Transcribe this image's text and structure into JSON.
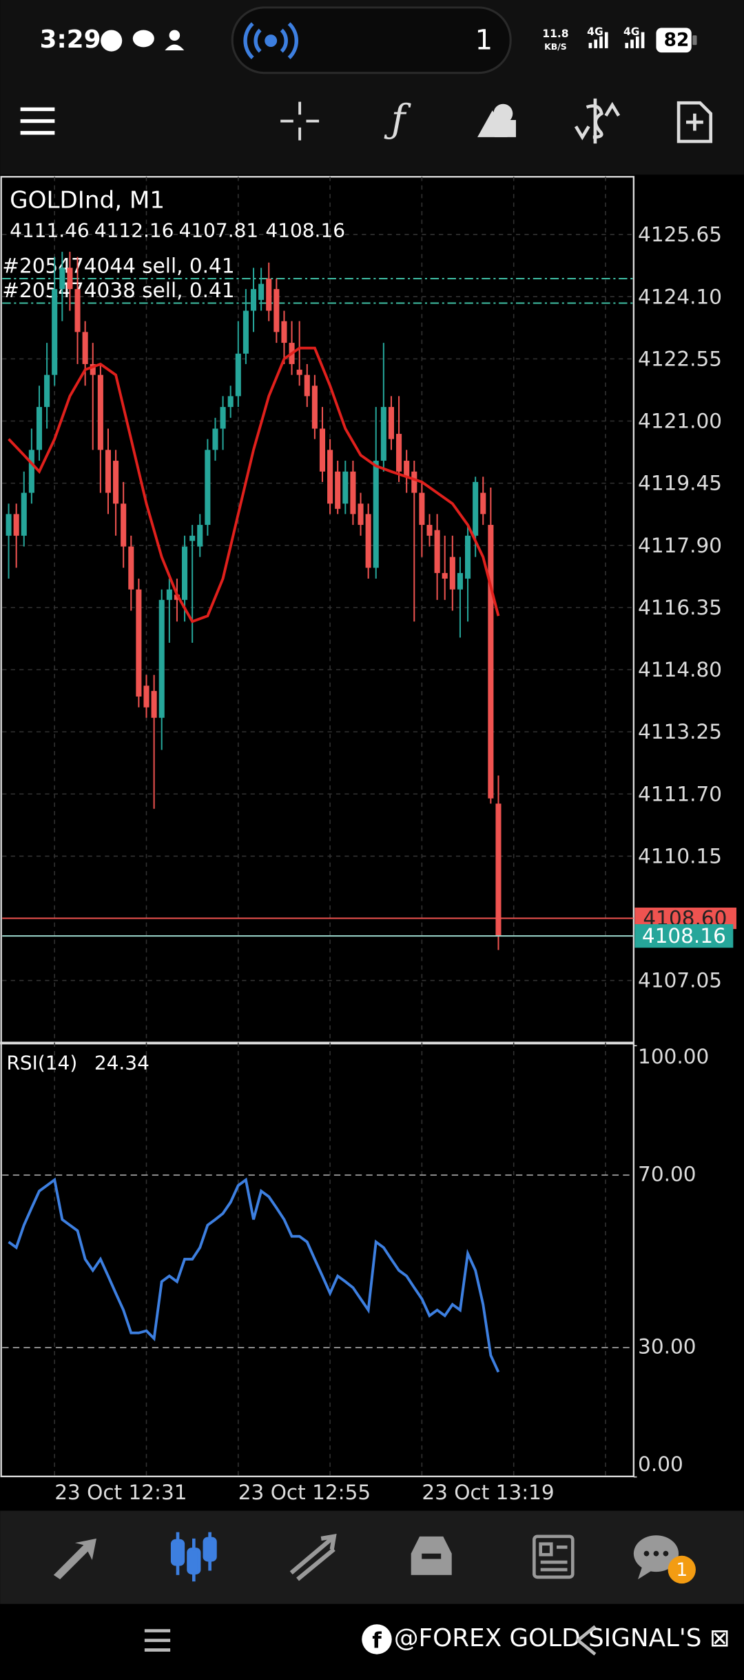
{
  "status_bar": {
    "time": "3:29",
    "live_count": "1",
    "speed": "11.8",
    "speed_unit": "KB/S",
    "network_1": "4G",
    "network_2": "4G",
    "battery": "82"
  },
  "chart": {
    "type": "candlestick",
    "symbol": "GOLDInd, M1",
    "up_color": "#26a69a",
    "down_color": "#ef5350",
    "ylim": [
      4105.53,
      4127.09
    ],
    "yticks": [
      4125.65,
      {
        "value": 4124.1,
        "label": "4124.10"
      },
      4122.55,
      {
        "value": 4121.0,
        "label": "4121.00"
      },
      4119.45,
      {
        "value": 4117.9,
        "label": "4117.90"
      },
      4116.35,
      {
        "value": 4114.8,
        "label": "4114.80"
      },
      4113.25,
      {
        "value": 4111.7,
        "label": "4111.70"
      },
      4110.15,
      4107.05
    ],
    "categories": [
      null,
      null,
      null,
      null,
      null,
      null,
      "23 Oct 12:31",
      null,
      null,
      null,
      null,
      null,
      null,
      null,
      null,
      null,
      null,
      null,
      null,
      null,
      null,
      null,
      null,
      null,
      null,
      null,
      null,
      null,
      null,
      null,
      "23 Oct 12:55",
      null,
      null,
      null,
      null,
      null,
      null,
      null,
      null,
      null,
      null,
      null,
      null,
      null,
      null,
      null,
      null,
      null,
      null,
      null,
      null,
      null,
      null,
      null,
      "23 Oct 13:19",
      null,
      null,
      null,
      null,
      null,
      null,
      null,
      null,
      null,
      null
    ],
    "candles": {
      "open": [
        4118.14,
        4118.68,
        4118.14,
        4119.21,
        4120.28,
        4121.35,
        4122.15,
        4124.29,
        4124.82,
        4124.29,
        4123.22,
        4122.42,
        4122.15,
        4120.28,
        4120.01,
        4118.94,
        4117.87,
        4116.8,
        4114.4,
        4114.27,
        4113.6,
        4116.54,
        4116.67,
        4116.54,
        4118.01,
        4117.87,
        4118.41,
        4120.28,
        4120.81,
        4121.35,
        4121.62,
        4122.68,
        4123.75,
        4124.02,
        4124.55,
        4124.29,
        4123.49,
        4122.95,
        4122.28,
        4122.15,
        4121.88,
        4120.81,
        4120.28,
        4119.74,
        4118.94,
        4119.74,
        4118.94,
        4118.68,
        4117.34,
        4120.01,
        4121.35,
        4120.68,
        4120.01,
        4119.74,
        4119.21,
        4118.41,
        4118.28,
        4117.21,
        4117.61,
        4116.8,
        4117.07,
        4118.14,
        4119.21,
        4118.41,
        4111.46
      ],
      "high": [
        4118.94,
        4118.94,
        4119.74,
        4120.81,
        4121.88,
        4122.95,
        4125.09,
        4125.22,
        4125.22,
        4125.09,
        4123.49,
        4122.95,
        4122.42,
        4120.81,
        4120.28,
        4119.48,
        4118.14,
        4117.07,
        4114.67,
        4114.67,
        4116.8,
        4117.07,
        4117.07,
        4118.14,
        4118.41,
        4118.68,
        4120.55,
        4121.08,
        4121.62,
        4121.88,
        4123.49,
        4124.29,
        4124.82,
        4124.82,
        4124.95,
        4124.55,
        4123.75,
        4123.49,
        4123.49,
        4122.42,
        4122.15,
        4121.35,
        4120.55,
        4120.01,
        4120.01,
        4120.01,
        4119.21,
        4118.94,
        4121.35,
        4122.95,
        4121.62,
        4121.62,
        4120.28,
        4120.01,
        4119.48,
        4118.68,
        4118.68,
        4118.14,
        4118.14,
        4117.61,
        4118.41,
        4119.61,
        4119.61,
        4119.34,
        4112.16
      ],
      "low": [
        4117.07,
        4117.34,
        4117.87,
        4118.94,
        4120.01,
        4120.81,
        4121.88,
        4123.49,
        4123.75,
        4122.42,
        4121.88,
        4120.28,
        4119.21,
        4118.68,
        4118.14,
        4117.34,
        4116.27,
        4113.86,
        4113.6,
        4111.33,
        4112.8,
        4115.47,
        4116.0,
        4116.0,
        4115.47,
        4117.61,
        4118.14,
        4120.01,
        4120.28,
        4121.08,
        4121.35,
        4122.42,
        4123.22,
        4123.75,
        4123.49,
        4122.95,
        4122.42,
        4122.15,
        4121.88,
        4121.35,
        4120.55,
        4119.48,
        4118.68,
        4118.68,
        4118.68,
        4118.41,
        4118.14,
        4117.07,
        4117.07,
        4119.74,
        4120.28,
        4119.48,
        4119.21,
        4116.0,
        4117.61,
        4117.87,
        4116.54,
        4116.54,
        4116.27,
        4115.6,
        4116.0,
        4117.61,
        4118.41,
        4111.46,
        4107.81
      ],
      "close": [
        4118.68,
        4118.14,
        4119.21,
        4120.28,
        4121.35,
        4122.15,
        4124.29,
        4124.82,
        4124.29,
        4123.22,
        4122.42,
        4122.15,
        4120.28,
        4119.21,
        4118.94,
        4117.87,
        4116.8,
        4114.13,
        4113.86,
        4113.6,
        4116.54,
        4116.8,
        4116.54,
        4117.87,
        4118.14,
        4118.41,
        4120.28,
        4120.81,
        4121.35,
        4121.62,
        4122.68,
        4123.75,
        4124.29,
        4124.42,
        4123.75,
        4123.22,
        4122.95,
        4122.42,
        4122.15,
        4121.62,
        4120.81,
        4119.74,
        4118.94,
        4118.81,
        4119.74,
        4118.68,
        4118.41,
        4117.34,
        4120.01,
        4121.35,
        4120.55,
        4119.74,
        4119.61,
        4119.21,
        4118.41,
        4118.14,
        4117.21,
        4117.07,
        4116.8,
        4117.21,
        4118.14,
        4119.48,
        4118.68,
        4111.59,
        4108.16
      ]
    },
    "ma": {
      "color": "#e0201c",
      "x": [
        0,
        2,
        4,
        6,
        8,
        10,
        12,
        14,
        16,
        18,
        20,
        22,
        24,
        26,
        28,
        30,
        32,
        34,
        36,
        38,
        40,
        42,
        44,
        46,
        48,
        50,
        52,
        54,
        56,
        58,
        60,
        62,
        64
      ],
      "values": [
        4120.55,
        4120.15,
        4119.74,
        4120.55,
        4121.62,
        4122.28,
        4122.42,
        4122.15,
        4120.55,
        4118.94,
        4117.61,
        4116.67,
        4116.0,
        4116.14,
        4117.07,
        4118.68,
        4120.28,
        4121.62,
        4122.55,
        4122.82,
        4122.82,
        4121.88,
        4120.81,
        4120.15,
        4119.88,
        4119.74,
        4119.61,
        4119.48,
        4119.21,
        4118.94,
        4118.41,
        4117.61,
        4116.14
      ]
    },
    "orders": [
      {
        "label": "#205474044 sell, 0.41",
        "price": 4124.55
      },
      {
        "label": "#205474038 sell, 0.41",
        "price": 4123.94
      }
    ],
    "ask": {
      "value": 4108.6,
      "label": "4108.60"
    },
    "bid": 4108.16
  },
  "rsi": {
    "title": "RSI(14)",
    "color": "#3d7fe0",
    "ylim": [
      0,
      100
    ],
    "yticks": [
      {
        "value": 0,
        "label": "0.00"
      },
      {
        "value": 30,
        "label": "30.00"
      },
      {
        "value": 70,
        "label": "70.00"
      },
      {
        "value": 100,
        "label": "100.00"
      }
    ],
    "values": [
      54.5,
      53.2,
      58.4,
      62.4,
      66.3,
      67.6,
      68.9,
      59.7,
      58.4,
      57.1,
      50.5,
      47.9,
      50.5,
      46.6,
      42.6,
      38.7,
      33.4,
      33.4,
      33.9,
      32.1,
      45.3,
      46.6,
      45.3,
      50.5,
      50.5,
      53.2,
      58.4,
      59.7,
      61.1,
      63.7,
      67.6,
      68.9,
      59.7,
      66.3,
      65.0,
      62.4,
      59.7,
      55.8,
      55.8,
      54.5,
      50.5,
      46.6,
      42.6,
      46.6,
      45.3,
      43.9,
      41.3,
      38.7,
      54.5,
      53.2,
      50.5,
      47.9,
      46.6,
      43.9,
      41.3,
      37.4,
      38.7,
      37.4,
      40.0,
      38.7,
      51.8,
      47.9,
      40.0,
      28.2,
      24.34
    ]
  },
  "bottom_nav": {
    "badge": "1"
  },
  "footer": {
    "watermark": "@FOREX GOLD SIGNAL'S ⊠"
  }
}
